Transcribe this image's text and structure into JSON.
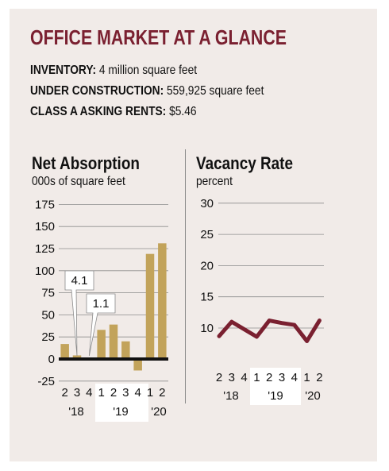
{
  "header": {
    "title": "OFFICE MARKET AT A GLANCE",
    "stats": [
      {
        "label": "INVENTORY:",
        "value": "4 million square feet"
      },
      {
        "label": "UNDER CONSTRUCTION:",
        "value": "559,925 square feet"
      },
      {
        "label": "CLASS A ASKING RENTS:",
        "value": "$5.46"
      }
    ]
  },
  "colors": {
    "title": "#7a2030",
    "bar": "#c2a35a",
    "line": "#7a2030",
    "panel": "#f1ebe8",
    "highlight": "#ffffff"
  },
  "chart_data": [
    {
      "type": "bar",
      "title": "Net Absorption",
      "ylabel": "000s of square feet",
      "categories": [
        "2",
        "3",
        "4",
        "1",
        "2",
        "3",
        "4",
        "1",
        "2"
      ],
      "year_labels": [
        "'18",
        "'19",
        "'20"
      ],
      "values": [
        17,
        4.1,
        1.1,
        33,
        39,
        20,
        -13,
        119,
        131
      ],
      "callouts": [
        {
          "index": 1,
          "text": "4.1"
        },
        {
          "index": 2,
          "text": "1.1"
        }
      ],
      "yticks": [
        175,
        150,
        125,
        100,
        75,
        50,
        25,
        0,
        -25
      ],
      "ylim": [
        -25,
        175
      ],
      "grid": true
    },
    {
      "type": "line",
      "title": "Vacancy Rate",
      "ylabel": "percent",
      "categories": [
        "2",
        "3",
        "4",
        "1",
        "2",
        "3",
        "4",
        "1",
        "2"
      ],
      "year_labels": [
        "'18",
        "'19",
        "'20"
      ],
      "values": [
        8.7,
        11.0,
        9.8,
        8.6,
        11.2,
        10.8,
        10.5,
        7.9,
        11.2
      ],
      "yticks": [
        30,
        25,
        20,
        15,
        10
      ],
      "ylim": [
        7,
        30
      ],
      "grid": true
    }
  ]
}
